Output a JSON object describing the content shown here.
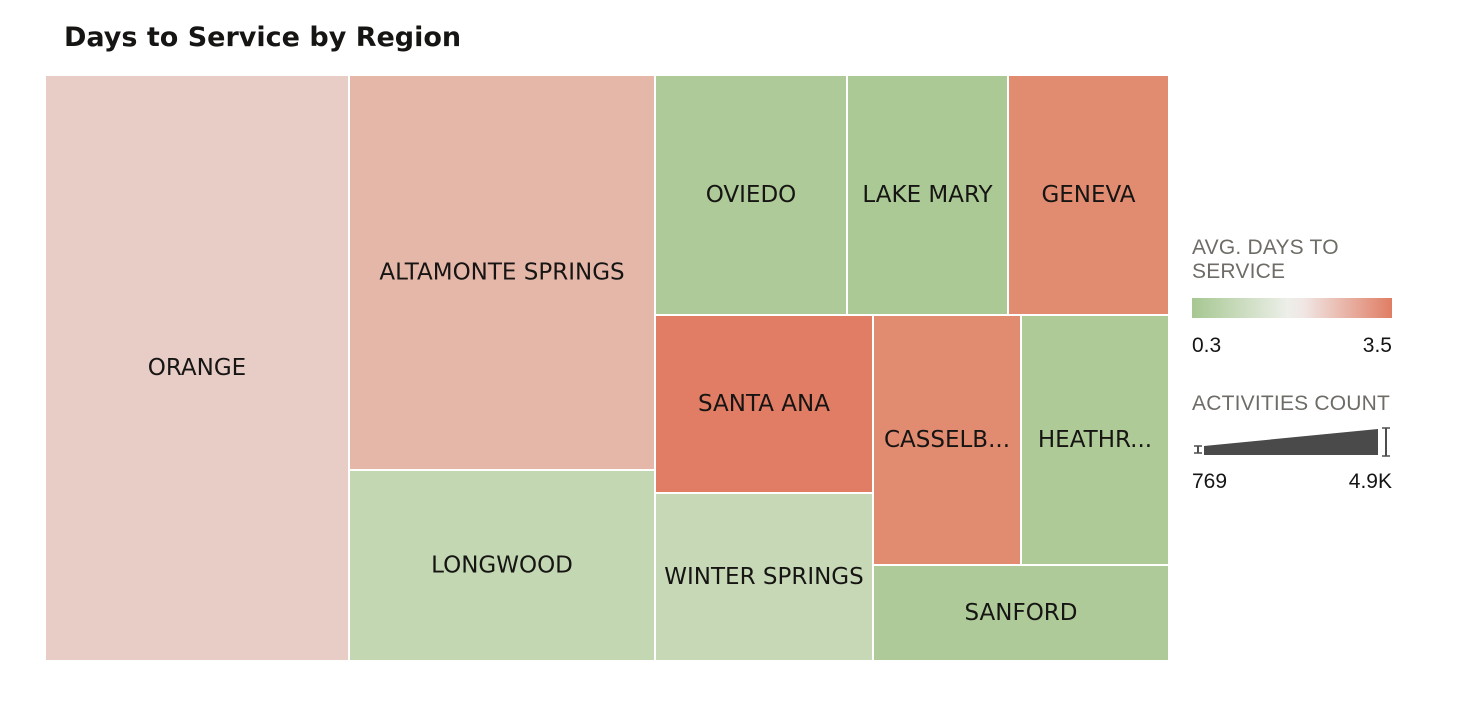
{
  "title": "Days to Service by Region",
  "legend": {
    "color_title": "AVG. DAYS TO SERVICE",
    "color_min": "0.3",
    "color_max": "3.5",
    "size_title": "ACTIVITIES COUNT",
    "size_min": "769",
    "size_max": "4.9K",
    "colors": {
      "low": "#a6c791",
      "mid": "#edefe9",
      "high": "#e07d64"
    }
  },
  "chart_data": {
    "type": "treemap",
    "title": "Days to Service by Region",
    "size_measure": "ACTIVITIES COUNT",
    "color_measure": "AVG. DAYS TO SERVICE",
    "color_range": [
      0.3,
      3.5
    ],
    "size_range": [
      769,
      4900
    ],
    "nodes": [
      {
        "label": "ORANGE",
        "size": 4900,
        "avg_days": 2.0,
        "color": "#e8cdc7"
      },
      {
        "label": "ALTAMONTE SPRINGS",
        "size": 3300,
        "avg_days": 2.3,
        "color": "#e5b7a9"
      },
      {
        "label": "LONGWOOD",
        "size": 1550,
        "avg_days": 1.1,
        "color": "#c2d7b2"
      },
      {
        "label": "OVIEDO",
        "size": 1250,
        "avg_days": 0.8,
        "color": "#aeca98"
      },
      {
        "label": "LAKE MARY",
        "size": 1050,
        "avg_days": 0.8,
        "color": "#abc995"
      },
      {
        "label": "GENEVA",
        "size": 1050,
        "avg_days": 3.3,
        "color": "#e18c71"
      },
      {
        "label": "SANTA ANA",
        "size": 1080,
        "avg_days": 3.5,
        "color": "#e07d64"
      },
      {
        "label": "WINTER SPRINGS",
        "size": 1050,
        "avg_days": 1.2,
        "color": "#c6d8b6"
      },
      {
        "label": "CASSELB...",
        "size": 1000,
        "avg_days": 3.3,
        "color": "#e18c71"
      },
      {
        "label": "HEATHR...",
        "size": 1000,
        "avg_days": 0.8,
        "color": "#adca97"
      },
      {
        "label": "SANFORD",
        "size": 769,
        "avg_days": 0.8,
        "color": "#aeca98"
      }
    ]
  }
}
